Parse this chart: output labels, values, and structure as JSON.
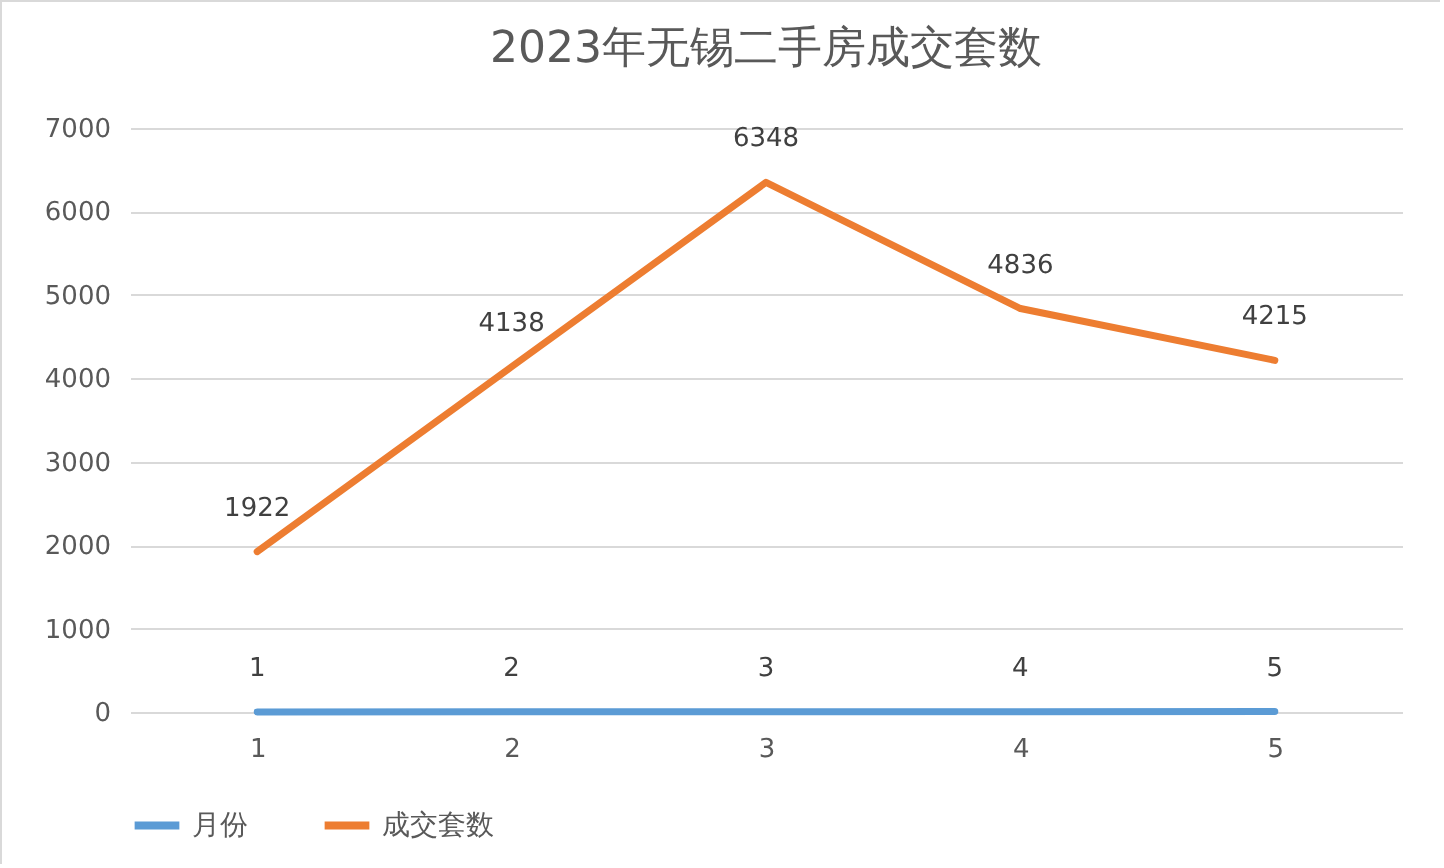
{
  "chart_data": {
    "type": "line",
    "title": "2023年无锡二手房成交套数",
    "categories": [
      "1",
      "2",
      "3",
      "4",
      "5"
    ],
    "series": [
      {
        "name": "月份",
        "color": "#5b9bd5",
        "values": [
          1,
          2,
          3,
          4,
          5
        ]
      },
      {
        "name": "成交套数",
        "color": "#ed7d31",
        "values": [
          1922,
          4138,
          6348,
          4836,
          4215
        ]
      }
    ],
    "ylim": [
      0,
      7000
    ],
    "yticks": [
      0,
      1000,
      2000,
      3000,
      4000,
      5000,
      6000,
      7000
    ],
    "grid": "y",
    "legend": "bottom",
    "data_labels": true,
    "line_style": "solid",
    "marker": "none"
  }
}
